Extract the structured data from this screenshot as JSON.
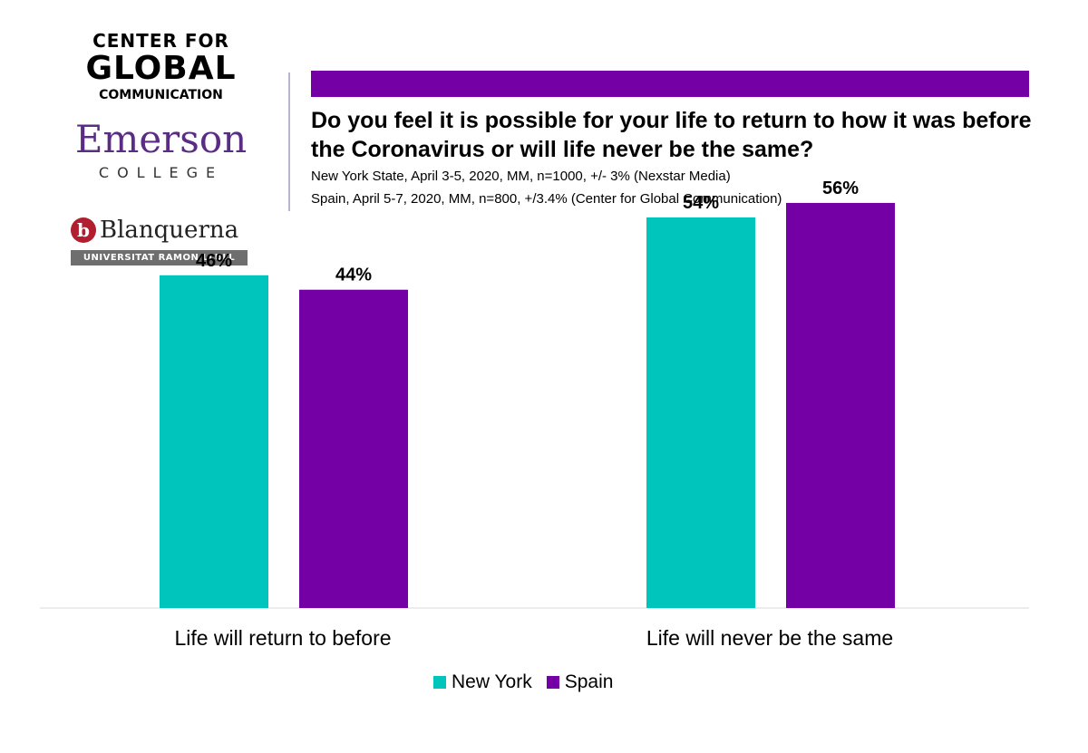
{
  "logos": {
    "cgc": {
      "line1": "CENTER FOR",
      "line2": "GLOBAL",
      "line3": "COMMUNICATION"
    },
    "emerson": {
      "name": "Emerson",
      "college": "COLLEGE"
    },
    "blanquerna": {
      "badge": "b",
      "name": "Blanquerna",
      "university": "UNIVERSITAT RAMON LLULL"
    }
  },
  "colors": {
    "new_york": "#00c5bd",
    "spain": "#7400a5",
    "bar_top": "#7400a5",
    "axis": "#d9d9d9"
  },
  "chart_data": {
    "type": "bar",
    "title": "Do you feel it is possible for your life to return to how it was before the Coronavirus or will life never be the same?",
    "subtitle_lines": [
      "New York State, April 3-5, 2020, MM, n=1000, +/- 3% (Nexstar Media)",
      "Spain, April 5-7, 2020, MM, n=800, +/3.4% (Center for Global Communication)"
    ],
    "categories": [
      "Life will return to before",
      "Life will never be the same"
    ],
    "series": [
      {
        "name": "New York",
        "values": [
          46,
          54
        ],
        "labels": [
          "46%",
          "54%"
        ]
      },
      {
        "name": "Spain",
        "values": [
          44,
          56
        ],
        "labels": [
          "44%",
          "56%"
        ]
      }
    ],
    "ylim": [
      0,
      60
    ],
    "legend_position": "bottom",
    "grid": false
  }
}
